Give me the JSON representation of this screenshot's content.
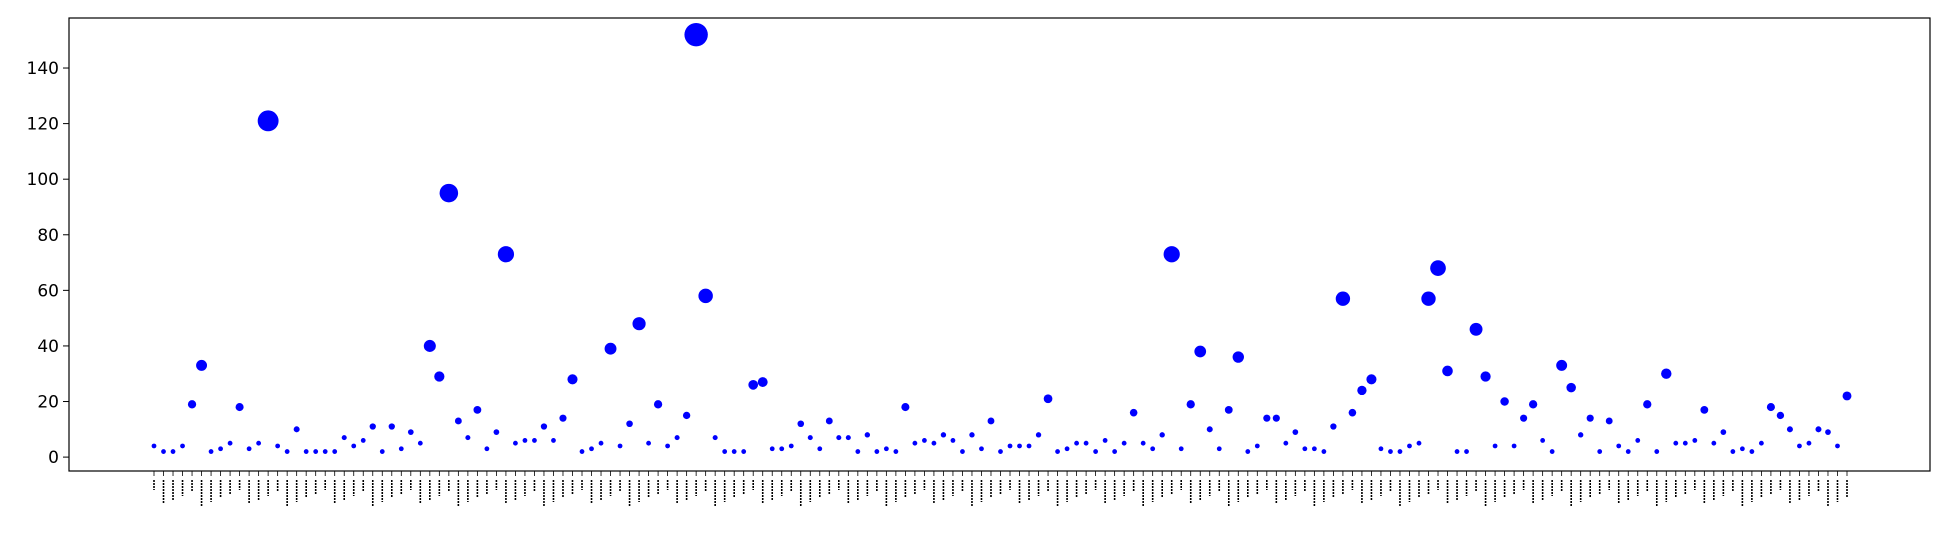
{
  "chart_data": {
    "type": "scatter",
    "title": "",
    "xlabel": "",
    "ylabel": "",
    "ylim": [
      -5,
      158
    ],
    "yticks": [
      0,
      20,
      40,
      60,
      80,
      100,
      120,
      140
    ],
    "grid": false,
    "marker_color": "#0000ff",
    "x_tick_labels_note": "≈180 tiny rotated category labels are illegible at this resolution and are not transcribed",
    "values": [
      4,
      2,
      2,
      4,
      19,
      33,
      2,
      3,
      5,
      18,
      3,
      5,
      121,
      4,
      2,
      10,
      2,
      2,
      2,
      2,
      7,
      4,
      6,
      11,
      2,
      11,
      3,
      9,
      5,
      40,
      29,
      95,
      13,
      7,
      17,
      3,
      9,
      73,
      5,
      6,
      6,
      11,
      6,
      14,
      28,
      2,
      3,
      5,
      39,
      4,
      12,
      48,
      5,
      19,
      4,
      7,
      15,
      152,
      58,
      7,
      2,
      2,
      2,
      26,
      27,
      3,
      3,
      4,
      12,
      7,
      3,
      13,
      7,
      7,
      2,
      8,
      2,
      3,
      2,
      18,
      5,
      6,
      5,
      8,
      6,
      2,
      8,
      3,
      13,
      2,
      4,
      4,
      4,
      8,
      21,
      2,
      3,
      5,
      5,
      2,
      6,
      2,
      5,
      16,
      5,
      3,
      8,
      73,
      3,
      19,
      38,
      10,
      3,
      17,
      36,
      2,
      4,
      14,
      14,
      5,
      9,
      3,
      3,
      2,
      11,
      57,
      16,
      24,
      28,
      3,
      2,
      2,
      4,
      5,
      57,
      68,
      31,
      2,
      2,
      46,
      29,
      4,
      20,
      4,
      14,
      19,
      6,
      2,
      33,
      25,
      8,
      14,
      2,
      13,
      4,
      2,
      6,
      19,
      2,
      30,
      5,
      5,
      6,
      17,
      5,
      9,
      2,
      3,
      2,
      5,
      18,
      15,
      10,
      4,
      5,
      10,
      9,
      4,
      22
    ]
  }
}
